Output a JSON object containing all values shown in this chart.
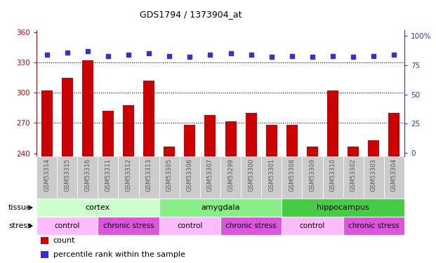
{
  "title": "GDS1794 / 1373904_at",
  "samples": [
    "GSM53314",
    "GSM53315",
    "GSM53316",
    "GSM53311",
    "GSM53312",
    "GSM53313",
    "GSM53305",
    "GSM53306",
    "GSM53307",
    "GSM53299",
    "GSM53300",
    "GSM53301",
    "GSM53308",
    "GSM53309",
    "GSM53310",
    "GSM53302",
    "GSM53303",
    "GSM53304"
  ],
  "counts": [
    302,
    315,
    332,
    282,
    288,
    312,
    247,
    268,
    278,
    272,
    280,
    268,
    268,
    247,
    302,
    247,
    253,
    280
  ],
  "percentiles": [
    84,
    86,
    87,
    83,
    84,
    85,
    83,
    82,
    84,
    85,
    84,
    82,
    83,
    82,
    83,
    82,
    83,
    84
  ],
  "ylim_left": [
    237,
    362
  ],
  "ylim_right": [
    -3,
    105
  ],
  "yticks_left": [
    240,
    270,
    300,
    330,
    360
  ],
  "yticks_right": [
    0,
    25,
    50,
    75,
    100
  ],
  "bar_color": "#cc0000",
  "dot_color": "#3333cc",
  "tissue_groups": [
    {
      "label": "cortex",
      "start": 0,
      "end": 6,
      "color": "#ccffcc"
    },
    {
      "label": "amygdala",
      "start": 6,
      "end": 12,
      "color": "#88ee88"
    },
    {
      "label": "hippocampus",
      "start": 12,
      "end": 18,
      "color": "#44cc44"
    }
  ],
  "stress_groups": [
    {
      "label": "control",
      "start": 0,
      "end": 3,
      "color": "#ffbbff"
    },
    {
      "label": "chronic stress",
      "start": 3,
      "end": 6,
      "color": "#dd55dd"
    },
    {
      "label": "control",
      "start": 6,
      "end": 9,
      "color": "#ffbbff"
    },
    {
      "label": "chronic stress",
      "start": 9,
      "end": 12,
      "color": "#dd55dd"
    },
    {
      "label": "control",
      "start": 12,
      "end": 15,
      "color": "#ffbbff"
    },
    {
      "label": "chronic stress",
      "start": 15,
      "end": 18,
      "color": "#dd55dd"
    }
  ],
  "tissue_label": "tissue",
  "stress_label": "stress",
  "legend_count_label": "count",
  "legend_percentile_label": "percentile rank within the sample",
  "bar_color_hex": "#cc0000",
  "dot_color_hex": "#3333cc",
  "tick_color_left": "#cc0000",
  "tick_color_right": "#3333cc",
  "title_color": "#000000",
  "sample_label_color": "#555555",
  "grid_yticks": [
    270,
    300,
    330
  ]
}
